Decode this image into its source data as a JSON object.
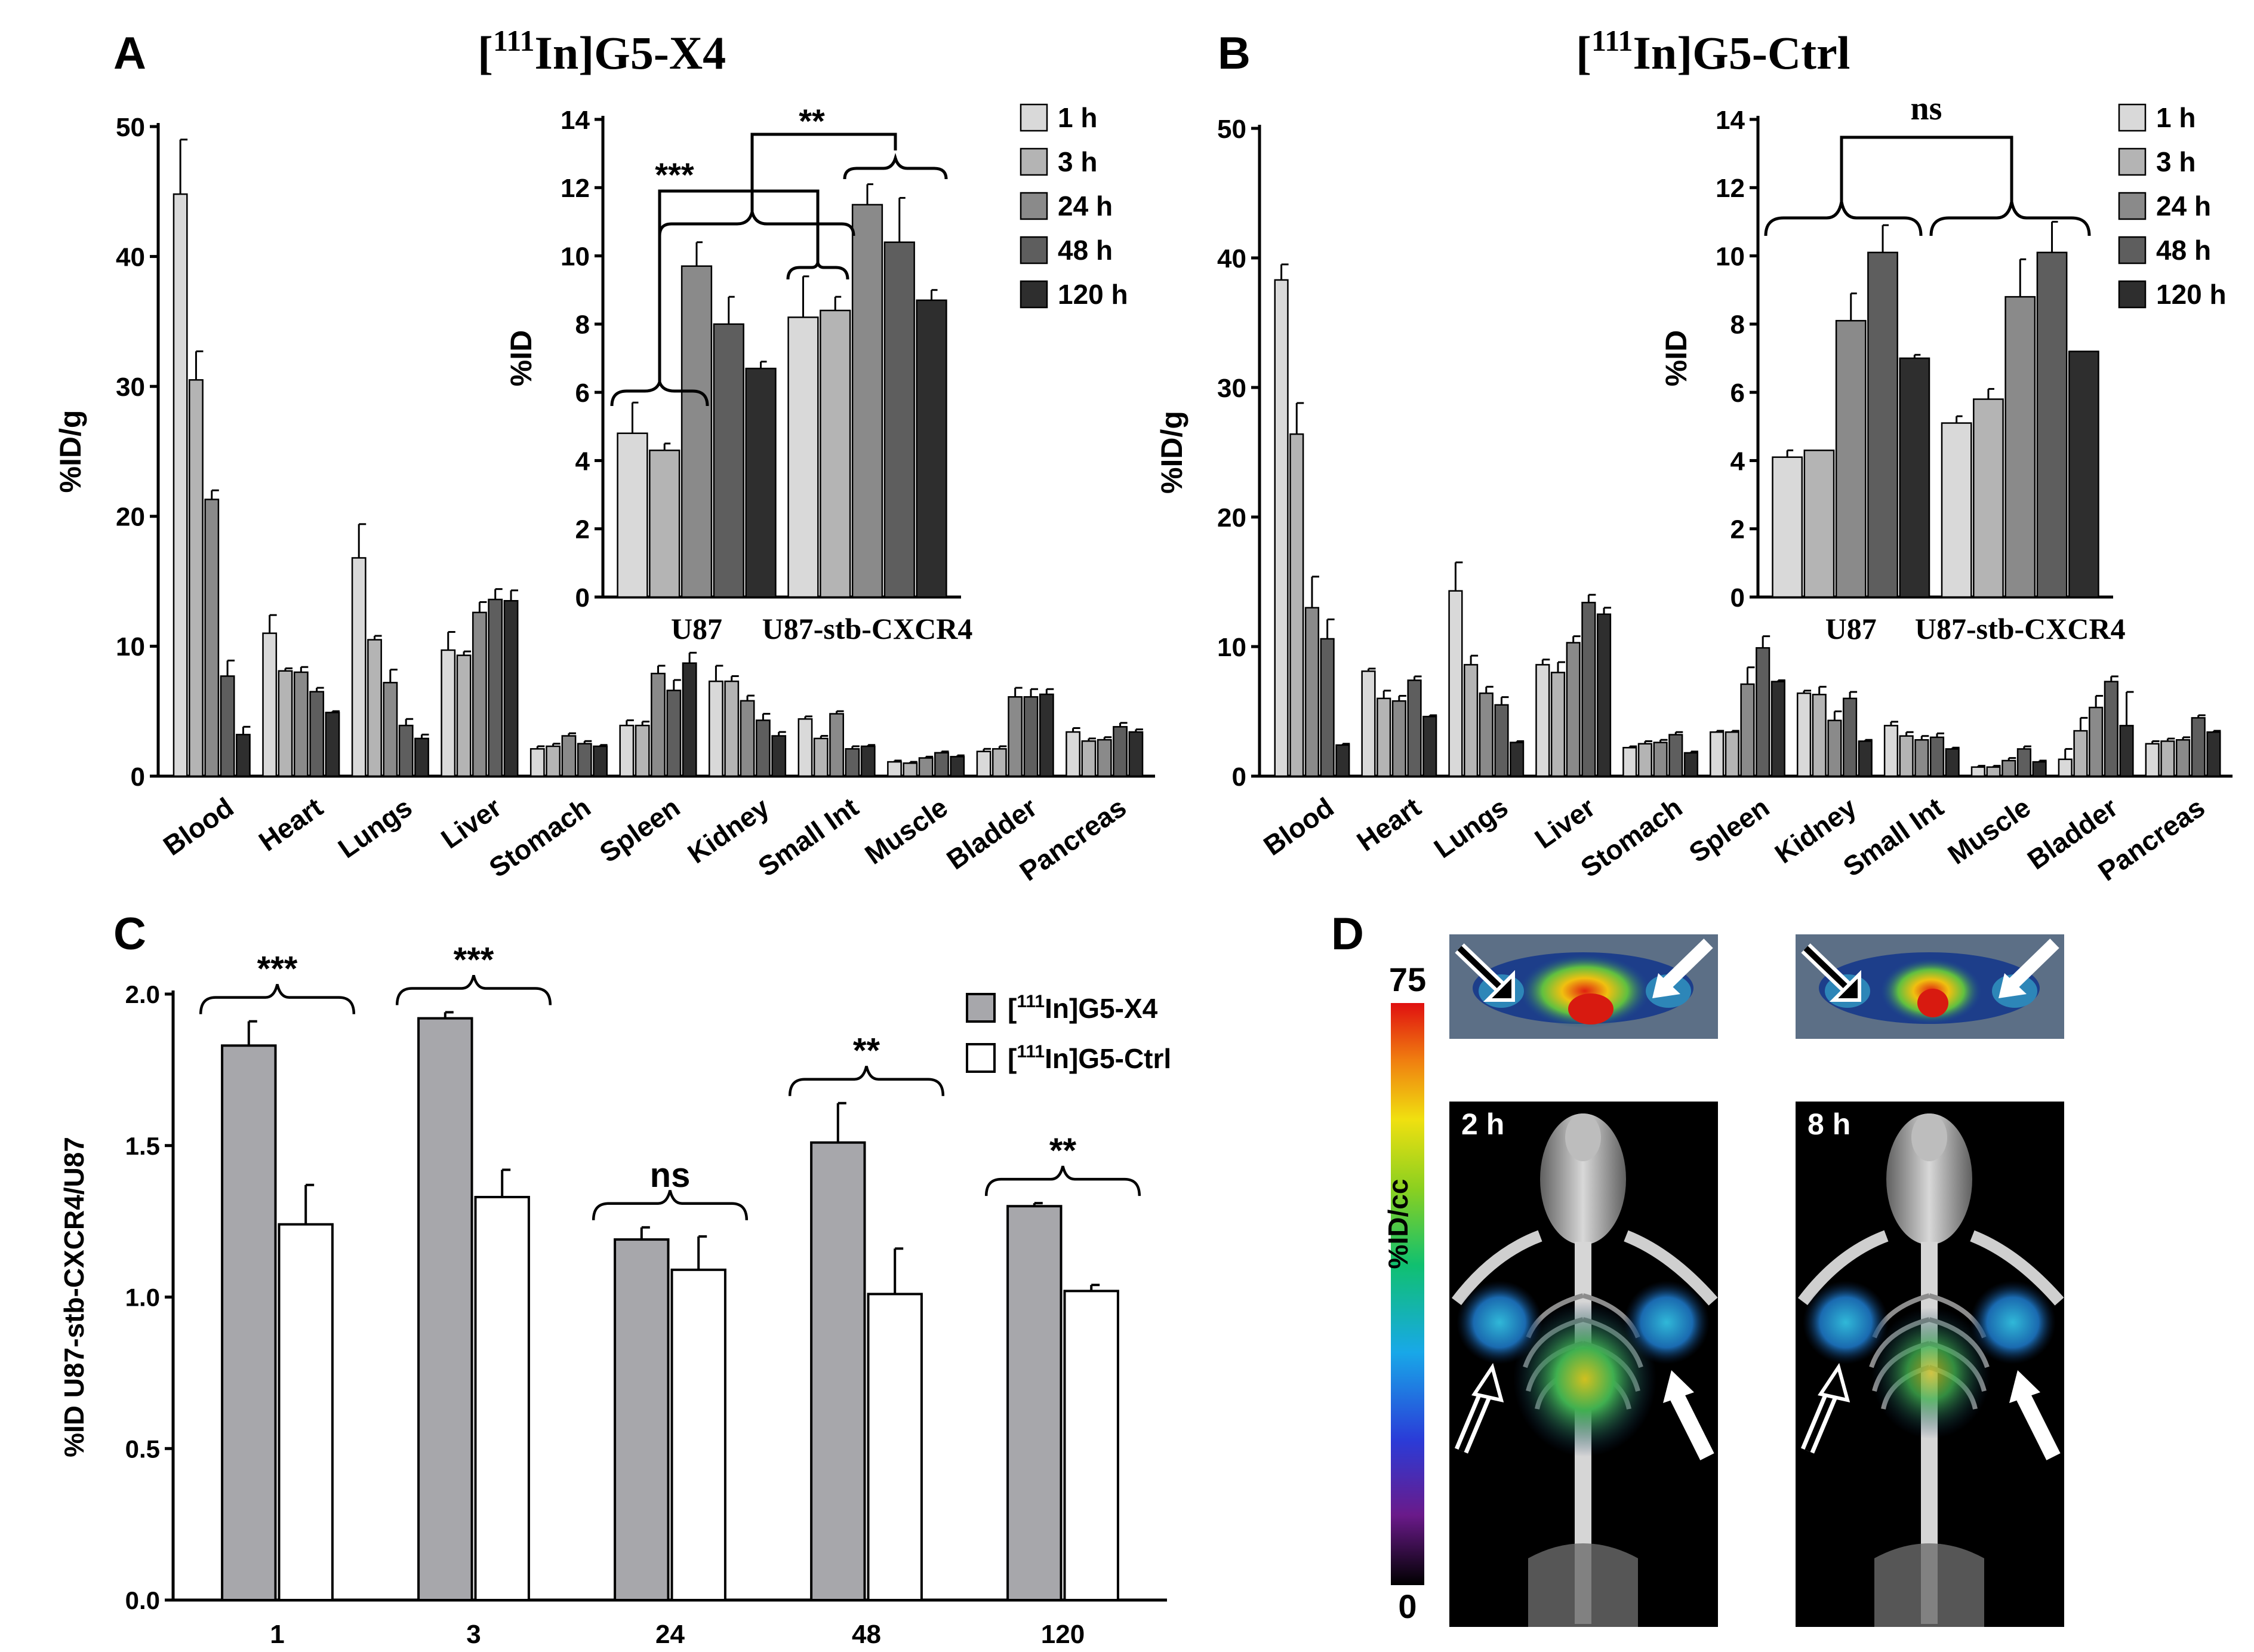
{
  "panels": {
    "A": {
      "letter": "A",
      "title_sup": "111",
      "title_text": "In]G5-X4"
    },
    "B": {
      "letter": "B",
      "title_sup": "111",
      "title_text": "In]G5-Ctrl"
    },
    "C": {
      "letter": "C"
    },
    "D": {
      "letter": "D"
    }
  },
  "palette": {
    "1 h": "#d9d9d9",
    "3 h": "#b4b4b4",
    "24 h": "#8a8a8a",
    "48 h": "#5e5e5e",
    "120 h": "#2e2e2e",
    "x4": "#a7a7ab",
    "ctrl": "#ffffff"
  },
  "chart_data": [
    {
      "id": "A_main",
      "type": "bar",
      "ylabel": "%ID/g",
      "ylim": [
        0,
        50
      ],
      "yticks": [
        0,
        10,
        20,
        30,
        40,
        50
      ],
      "categories": [
        "Blood",
        "Heart",
        "Lungs",
        "Liver",
        "Stomach",
        "Spleen",
        "Kidney",
        "Small Int",
        "Muscle",
        "Bladder",
        "Pancreas"
      ],
      "series": [
        {
          "name": "1 h",
          "values": [
            44.8,
            11.0,
            16.8,
            9.7,
            2.1,
            3.9,
            7.3,
            4.4,
            1.1,
            1.9,
            3.4
          ],
          "err": [
            4.2,
            1.4,
            2.6,
            1.4,
            0.2,
            0.4,
            1.2,
            0.2,
            0.1,
            0.2,
            0.3
          ]
        },
        {
          "name": "3 h",
          "values": [
            30.5,
            8.1,
            10.5,
            9.3,
            2.3,
            3.9,
            7.3,
            2.9,
            1.0,
            2.1,
            2.7
          ],
          "err": [
            2.2,
            0.2,
            0.3,
            0.3,
            0.2,
            0.3,
            0.4,
            0.2,
            0.1,
            0.2,
            0.2
          ]
        },
        {
          "name": "24 h",
          "values": [
            21.3,
            8.0,
            7.2,
            12.6,
            3.1,
            7.9,
            5.8,
            4.8,
            1.4,
            6.1,
            2.8
          ],
          "err": [
            0.7,
            0.4,
            1.0,
            0.8,
            0.2,
            0.6,
            0.4,
            0.2,
            0.1,
            0.7,
            0.2
          ]
        },
        {
          "name": "48 h",
          "values": [
            7.7,
            6.5,
            3.9,
            13.6,
            2.5,
            6.6,
            4.3,
            2.1,
            1.8,
            6.1,
            3.8
          ],
          "err": [
            1.2,
            0.3,
            0.5,
            0.8,
            0.2,
            0.8,
            0.5,
            0.2,
            0.1,
            0.6,
            0.3
          ]
        },
        {
          "name": "120 h",
          "values": [
            3.2,
            4.9,
            2.9,
            13.5,
            2.3,
            8.7,
            3.1,
            2.3,
            1.5,
            6.3,
            3.4
          ],
          "err": [
            0.6,
            0.1,
            0.3,
            0.8,
            0.1,
            0.8,
            0.3,
            0.1,
            0.1,
            0.4,
            0.2
          ]
        }
      ]
    },
    {
      "id": "A_inset",
      "type": "bar",
      "ylabel": "%ID",
      "ylim": [
        0,
        14
      ],
      "yticks": [
        0,
        2,
        4,
        6,
        8,
        10,
        12,
        14
      ],
      "categories": [
        "U87",
        "U87-stb-CXCR4"
      ],
      "series": [
        {
          "name": "1 h",
          "values": [
            4.8,
            8.2
          ],
          "err": [
            0.9,
            1.2
          ]
        },
        {
          "name": "3 h",
          "values": [
            4.3,
            8.4
          ],
          "err": [
            0.2,
            0.4
          ]
        },
        {
          "name": "24 h",
          "values": [
            9.7,
            11.5
          ],
          "err": [
            0.7,
            0.6
          ]
        },
        {
          "name": "48 h",
          "values": [
            8.0,
            10.4
          ],
          "err": [
            0.8,
            1.3
          ]
        },
        {
          "name": "120 h",
          "values": [
            6.7,
            8.7
          ],
          "err": [
            0.2,
            0.3
          ]
        }
      ],
      "annotations": [
        "***",
        "**"
      ]
    },
    {
      "id": "B_main",
      "type": "bar",
      "ylabel": "%ID/g",
      "ylim": [
        0,
        50
      ],
      "yticks": [
        0,
        10,
        20,
        30,
        40,
        50
      ],
      "categories": [
        "Blood",
        "Heart",
        "Lungs",
        "Liver",
        "Stomach",
        "Spleen",
        "Kidney",
        "Small Int",
        "Muscle",
        "Bladder",
        "Pancreas"
      ],
      "series": [
        {
          "name": "1 h",
          "values": [
            38.3,
            8.1,
            14.3,
            8.6,
            2.2,
            3.4,
            6.4,
            3.9,
            0.7,
            1.3,
            2.5
          ],
          "err": [
            1.2,
            0.2,
            2.2,
            0.4,
            0.1,
            0.1,
            0.2,
            0.3,
            0.1,
            0.8,
            0.2
          ]
        },
        {
          "name": "3 h",
          "values": [
            26.4,
            6.0,
            8.6,
            8.0,
            2.5,
            3.4,
            6.3,
            3.1,
            0.7,
            3.5,
            2.7
          ],
          "err": [
            2.4,
            0.6,
            0.7,
            0.8,
            0.2,
            0.1,
            0.6,
            0.3,
            0.1,
            1.0,
            0.2
          ]
        },
        {
          "name": "24 h",
          "values": [
            13.0,
            5.8,
            6.4,
            10.3,
            2.6,
            7.1,
            4.3,
            2.8,
            1.2,
            5.3,
            2.8
          ],
          "err": [
            2.4,
            0.4,
            0.5,
            0.5,
            0.2,
            1.3,
            0.7,
            0.3,
            0.2,
            0.9,
            0.2
          ]
        },
        {
          "name": "48 h",
          "values": [
            10.6,
            7.4,
            5.5,
            13.4,
            3.2,
            9.9,
            6.0,
            3.0,
            2.1,
            7.3,
            4.5
          ],
          "err": [
            1.5,
            0.3,
            0.6,
            0.6,
            0.2,
            0.9,
            0.5,
            0.3,
            0.2,
            0.4,
            0.2
          ]
        },
        {
          "name": "120 h",
          "values": [
            2.4,
            4.6,
            2.6,
            12.5,
            1.8,
            7.3,
            2.7,
            2.1,
            1.1,
            3.9,
            3.4
          ],
          "err": [
            0.1,
            0.1,
            0.1,
            0.5,
            0.1,
            0.1,
            0.1,
            0.1,
            0.1,
            2.6,
            0.1
          ]
        }
      ]
    },
    {
      "id": "B_inset",
      "type": "bar",
      "ylabel": "%ID",
      "ylim": [
        0,
        14
      ],
      "yticks": [
        0,
        2,
        4,
        6,
        8,
        10,
        12,
        14
      ],
      "categories": [
        "U87",
        "U87-stb-CXCR4"
      ],
      "series": [
        {
          "name": "1 h",
          "values": [
            4.1,
            5.1
          ],
          "err": [
            0.2,
            0.2
          ]
        },
        {
          "name": "3 h",
          "values": [
            4.3,
            5.8
          ],
          "err": [
            0.0,
            0.3
          ]
        },
        {
          "name": "24 h",
          "values": [
            8.1,
            8.8
          ],
          "err": [
            0.8,
            1.1
          ]
        },
        {
          "name": "48 h",
          "values": [
            10.1,
            10.1
          ],
          "err": [
            0.8,
            0.9
          ]
        },
        {
          "name": "120 h",
          "values": [
            7.0,
            7.2
          ],
          "err": [
            0.1,
            0.0
          ]
        }
      ],
      "annotations": [
        "ns"
      ]
    },
    {
      "id": "C",
      "type": "bar",
      "ylabel": "%ID U87-stb-CXCR4/U87",
      "ylim": [
        0,
        2.0
      ],
      "yticks": [
        "0.0",
        "0.5",
        "1.0",
        "1.5",
        "2.0"
      ],
      "categories": [
        "1",
        "3",
        "24",
        "48",
        "120"
      ],
      "series": [
        {
          "name": "G5-X4",
          "legend_sup": "111",
          "legend_text": "In]G5-X4",
          "values": [
            1.83,
            1.92,
            1.19,
            1.51,
            1.3
          ],
          "err": [
            0.08,
            0.02,
            0.04,
            0.13,
            0.01
          ]
        },
        {
          "name": "G5-Ctrl",
          "legend_sup": "111",
          "legend_text": "In]G5-Ctrl",
          "values": [
            1.24,
            1.33,
            1.09,
            1.01,
            1.02
          ],
          "err": [
            0.13,
            0.09,
            0.11,
            0.15,
            0.02
          ]
        }
      ],
      "annotations": [
        "***",
        "***",
        "ns",
        "**",
        "**"
      ]
    }
  ],
  "panel_D": {
    "scale_max": "75",
    "scale_min": "0",
    "scale_label": "%ID/cc",
    "time_left": "2 h",
    "time_right": "8 h"
  }
}
